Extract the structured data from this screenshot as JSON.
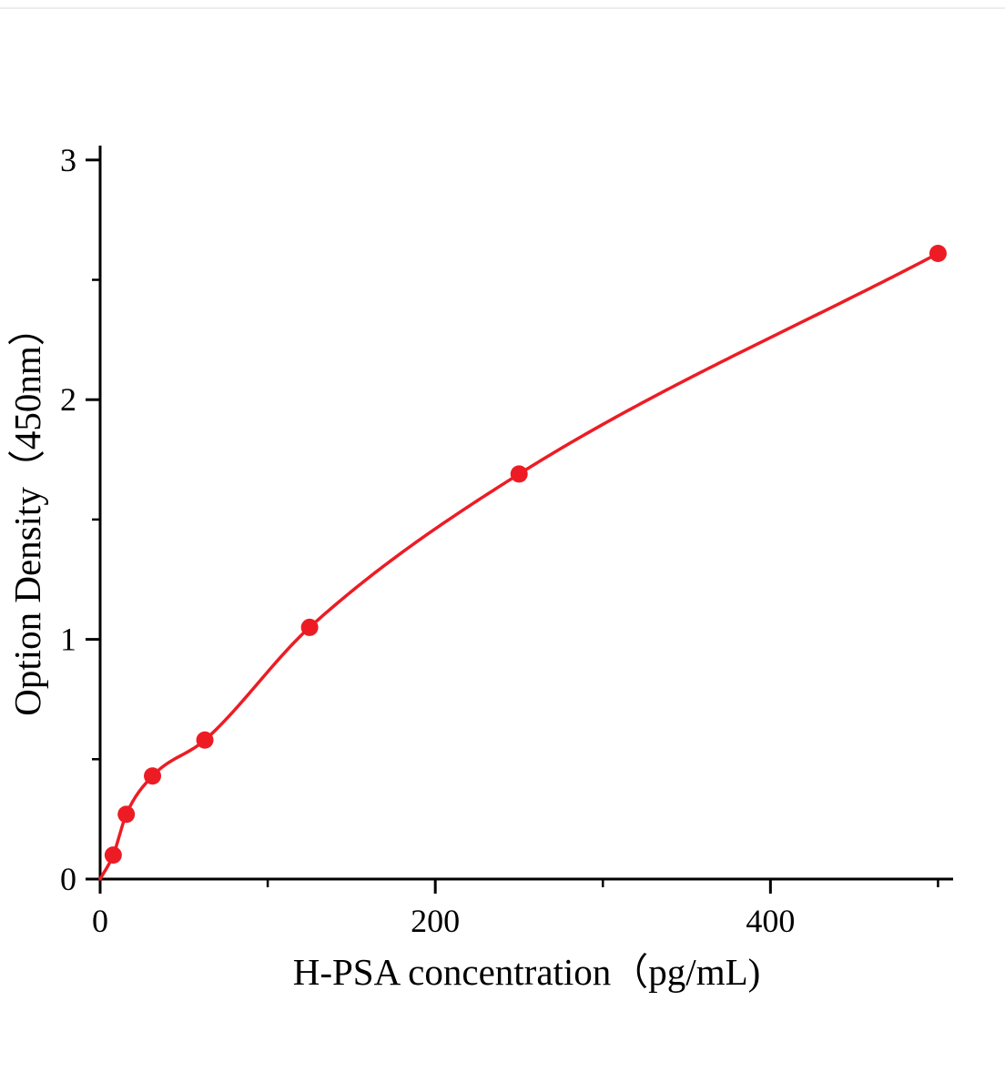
{
  "chart_data": {
    "type": "scatter",
    "subtype": "standard-curve-with-fitted-line",
    "title": "",
    "xlabel": "H-PSA concentration（pg/mL)",
    "ylabel": "Option Density（450nm）",
    "x": [
      7.8,
      15.6,
      31.25,
      62.5,
      125,
      250,
      500
    ],
    "y": [
      0.1,
      0.27,
      0.43,
      0.58,
      1.05,
      1.69,
      2.61
    ],
    "curve_start": [
      0,
      0
    ],
    "xlim": [
      0,
      509
    ],
    "ylim": [
      0,
      3.06
    ],
    "x_major_ticks": [
      0,
      200,
      400
    ],
    "x_minor_ticks": [
      100,
      300,
      500
    ],
    "y_major_ticks": [
      0,
      1,
      2,
      3
    ],
    "y_minor_ticks": [
      0.5,
      1.5,
      2.5
    ],
    "grid": false,
    "legend": false,
    "colors": {
      "curve": "#ed1c24",
      "points": "#ed1c24",
      "axis": "#000000",
      "background": "#ffffff",
      "top_rule": "#e7e7e7"
    }
  }
}
